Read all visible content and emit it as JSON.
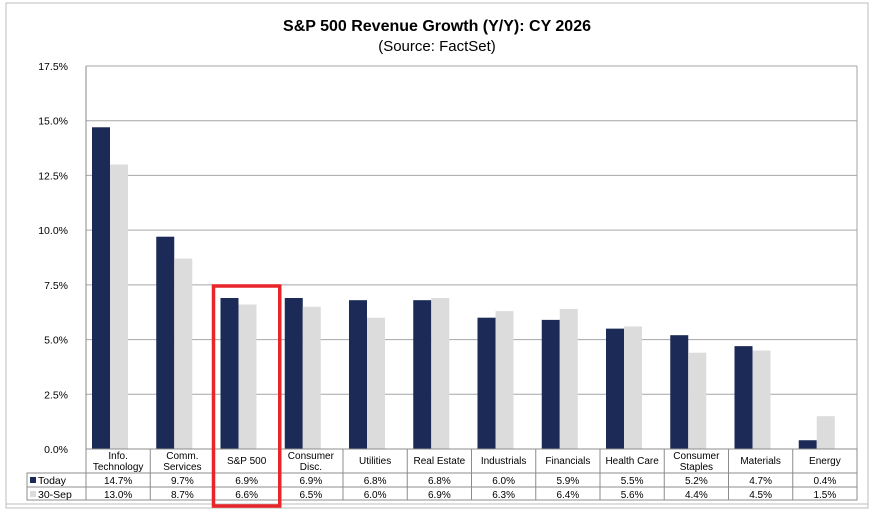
{
  "chart_data": {
    "type": "bar",
    "title": "S&P 500 Revenue Growth (Y/Y): CY 2026",
    "subtitle": "(Source: FactSet)",
    "categories": [
      [
        "Info.",
        "Technology"
      ],
      [
        "Comm.",
        "Services"
      ],
      [
        "S&P 500"
      ],
      [
        "Consumer",
        "Disc."
      ],
      [
        "Utilities"
      ],
      [
        "Real Estate"
      ],
      [
        "Industrials"
      ],
      [
        "Financials"
      ],
      [
        "Health Care"
      ],
      [
        "Consumer",
        "Staples"
      ],
      [
        "Materials"
      ],
      [
        "Energy"
      ]
    ],
    "series": [
      {
        "name": "Today",
        "color": "#1b2a56",
        "values": [
          14.7,
          9.7,
          6.9,
          6.9,
          6.8,
          6.8,
          6.0,
          5.9,
          5.5,
          5.2,
          4.7,
          0.4
        ],
        "labels": [
          "14.7%",
          "9.7%",
          "6.9%",
          "6.9%",
          "6.8%",
          "6.8%",
          "6.0%",
          "5.9%",
          "5.5%",
          "5.2%",
          "4.7%",
          "0.4%"
        ]
      },
      {
        "name": "30-Sep",
        "color": "#dcdcdc",
        "values": [
          13.0,
          8.7,
          6.6,
          6.5,
          6.0,
          6.9,
          6.3,
          6.4,
          5.6,
          4.4,
          4.5,
          1.5
        ],
        "labels": [
          "13.0%",
          "8.7%",
          "6.6%",
          "6.5%",
          "6.0%",
          "6.9%",
          "6.3%",
          "6.4%",
          "5.6%",
          "4.4%",
          "4.5%",
          "1.5%"
        ]
      }
    ],
    "ylim": [
      0,
      17.5
    ],
    "yticks": [
      "0.0%",
      "2.5%",
      "5.0%",
      "7.5%",
      "10.0%",
      "12.5%",
      "15.0%",
      "17.5%"
    ],
    "grid": true,
    "highlight_category": 2,
    "highlight_color": "#e8262a"
  }
}
